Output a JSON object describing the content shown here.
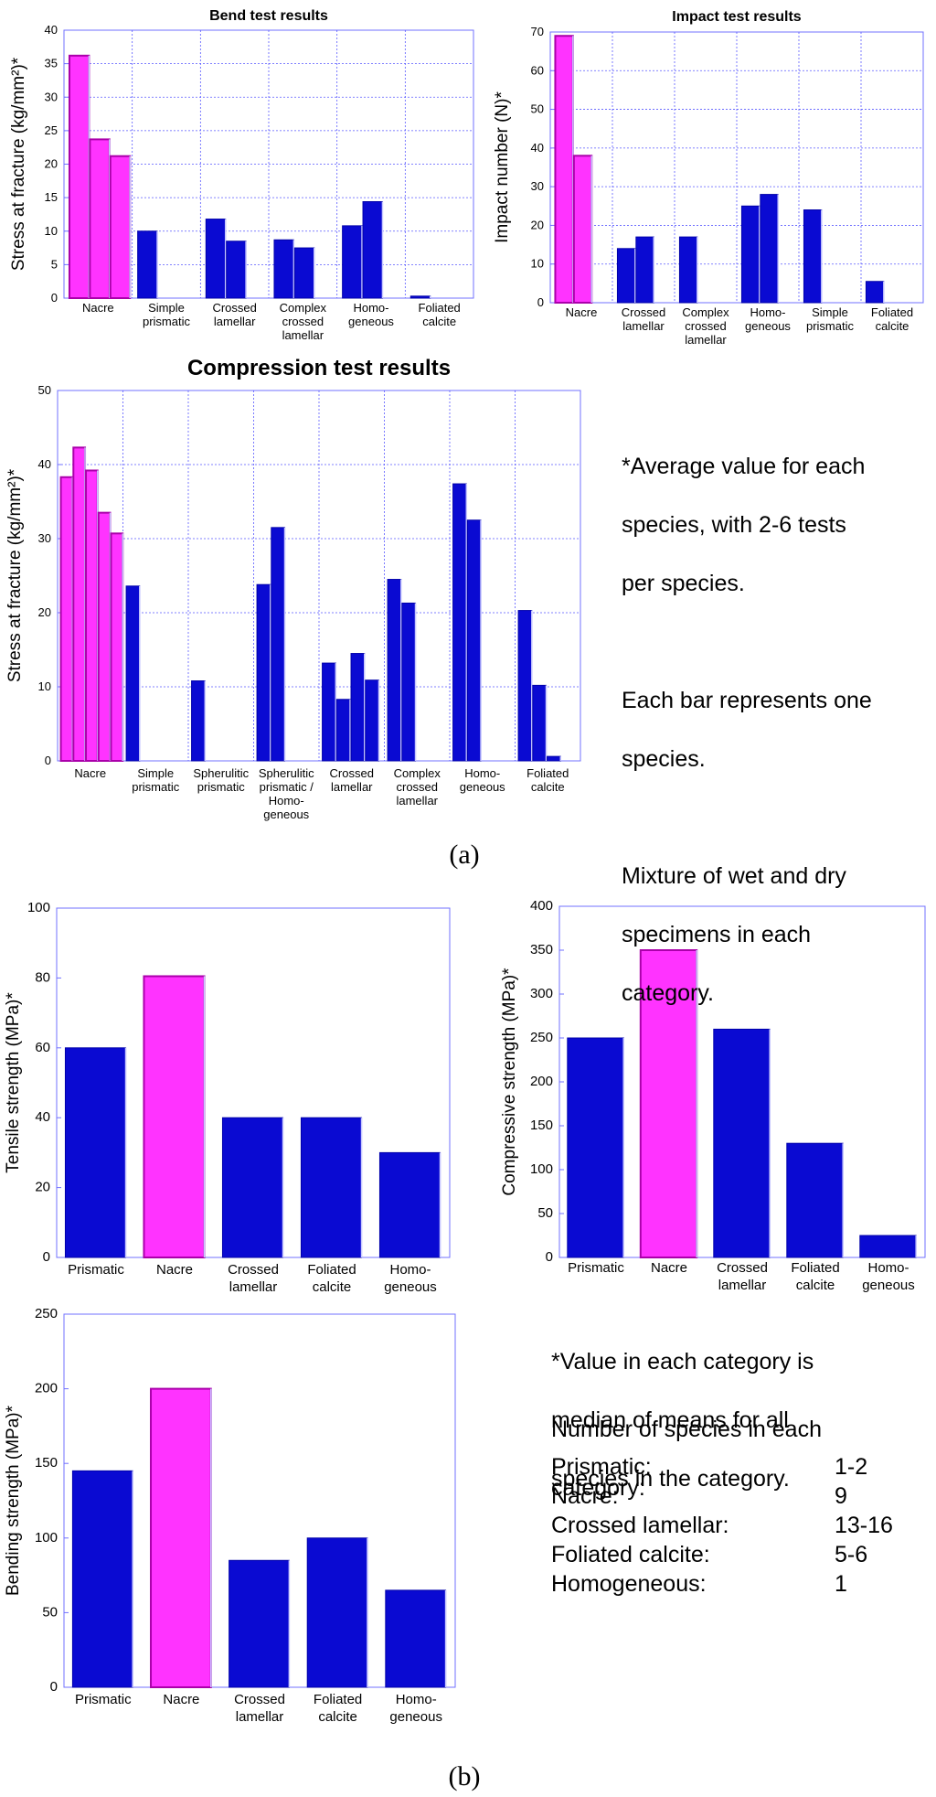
{
  "panel_labels": {
    "a": "(a)",
    "b": "(b)"
  },
  "notes": {
    "a": [
      "*Average value for each",
      "species, with 2-6 tests",
      "per species.",
      "",
      "Each bar represents one",
      "species.",
      "",
      "Mixture of wet and dry",
      "specimens in each",
      "category."
    ],
    "b": [
      "*Value in each category is",
      "median of means for all",
      "species in the category."
    ],
    "species_heading": [
      "Number of species in each",
      "category:"
    ],
    "species_counts": [
      {
        "category": "Prismatic:",
        "count": "1-2"
      },
      {
        "category": "Nacre:",
        "count": "9"
      },
      {
        "category": "Crossed lamellar:",
        "count": "13-16"
      },
      {
        "category": "Foliated calcite:",
        "count": "5-6"
      },
      {
        "category": "Homogeneous:",
        "count": "1"
      }
    ]
  },
  "colors": {
    "nacre_fill": "#ff33ff",
    "nacre_stroke": "#aa00aa",
    "other_fill": "#0a0ad2",
    "other_stroke": "#0000aa",
    "grid": "#5a5aff",
    "frame": "#7070ff"
  },
  "chart_data": [
    {
      "id": "bend",
      "type": "bar",
      "title": "Bend test results",
      "ylabel": "Stress at fracture (kg/mm²)*",
      "ylim": [
        0,
        40
      ],
      "yticks": [
        0,
        5,
        10,
        15,
        20,
        25,
        30,
        35,
        40
      ],
      "grid": true,
      "groups": [
        {
          "label": [
            "Nacre"
          ],
          "nacre": true,
          "values": [
            36.2,
            23.7,
            21.2
          ]
        },
        {
          "label": [
            "Simple",
            "prismatic"
          ],
          "values": [
            10
          ]
        },
        {
          "label": [
            "Crossed",
            "lamellar"
          ],
          "values": [
            11.8,
            8.5
          ]
        },
        {
          "label": [
            "Complex",
            "crossed",
            "lamellar"
          ],
          "values": [
            8.7,
            7.5
          ]
        },
        {
          "label": [
            "Homo-",
            "geneous"
          ],
          "values": [
            10.8,
            14.4
          ]
        },
        {
          "label": [
            "Foliated",
            "calcite"
          ],
          "values": [
            0.3
          ]
        }
      ]
    },
    {
      "id": "impact",
      "type": "bar",
      "title": "Impact test results",
      "ylabel": "Impact number (N)*",
      "ylim": [
        0,
        70
      ],
      "yticks": [
        0,
        10,
        20,
        30,
        40,
        50,
        60,
        70
      ],
      "grid": true,
      "groups": [
        {
          "label": [
            "Nacre"
          ],
          "nacre": true,
          "values": [
            69,
            38
          ]
        },
        {
          "label": [
            "Crossed",
            "lamellar"
          ],
          "values": [
            14,
            17
          ]
        },
        {
          "label": [
            "Complex",
            "crossed",
            "lamellar"
          ],
          "values": [
            17
          ]
        },
        {
          "label": [
            "Homo-",
            "geneous"
          ],
          "values": [
            25,
            28
          ]
        },
        {
          "label": [
            "Simple",
            "prismatic"
          ],
          "values": [
            24
          ]
        },
        {
          "label": [
            "Foliated",
            "calcite"
          ],
          "values": [
            5.5
          ]
        }
      ]
    },
    {
      "id": "compression",
      "type": "bar",
      "title": "Compression test results",
      "ylabel": "Stress at fracture (kg/mm²)*",
      "ylim": [
        0,
        50
      ],
      "yticks": [
        0,
        10,
        20,
        30,
        40,
        50
      ],
      "grid": true,
      "groups": [
        {
          "label": [
            "Nacre"
          ],
          "nacre": true,
          "values": [
            38.3,
            42.3,
            39.2,
            33.5,
            30.7
          ]
        },
        {
          "label": [
            "Simple",
            "prismatic"
          ],
          "values": [
            23.6
          ]
        },
        {
          "label": [
            "Spherulitic",
            "prismatic"
          ],
          "values": [
            10.8
          ]
        },
        {
          "label": [
            "Spherulitic",
            "prismatic /",
            "Homo-",
            "geneous"
          ],
          "values": [
            23.8,
            31.5
          ]
        },
        {
          "label": [
            "Crossed",
            "lamellar"
          ],
          "values": [
            13.2,
            8.3,
            14.5,
            10.9
          ]
        },
        {
          "label": [
            "Complex",
            "crossed",
            "lamellar"
          ],
          "values": [
            24.5,
            21.3
          ]
        },
        {
          "label": [
            "Homo-",
            "geneous"
          ],
          "values": [
            37.4,
            32.5
          ]
        },
        {
          "label": [
            "Foliated",
            "calcite"
          ],
          "values": [
            20.3,
            10.2,
            0.6
          ]
        }
      ]
    },
    {
      "id": "tensile",
      "type": "bar",
      "title": "",
      "ylabel": "Tensile strength (MPa)*",
      "ylim": [
        0,
        100
      ],
      "yticks": [
        0,
        20,
        40,
        60,
        80,
        100
      ],
      "grid": false,
      "groups": [
        {
          "label": [
            "Prismatic"
          ],
          "values": [
            60
          ]
        },
        {
          "label": [
            "Nacre"
          ],
          "nacre": true,
          "values": [
            80.5
          ]
        },
        {
          "label": [
            "Crossed",
            "lamellar"
          ],
          "values": [
            40
          ]
        },
        {
          "label": [
            "Foliated",
            "calcite"
          ],
          "values": [
            40
          ]
        },
        {
          "label": [
            "Homo-",
            "geneous"
          ],
          "values": [
            30
          ]
        }
      ]
    },
    {
      "id": "compressive",
      "type": "bar",
      "title": "",
      "ylabel": "Compressive strength (MPa)*",
      "ylim": [
        0,
        400
      ],
      "yticks": [
        0,
        50,
        100,
        150,
        200,
        250,
        300,
        350,
        400
      ],
      "grid": false,
      "groups": [
        {
          "label": [
            "Prismatic"
          ],
          "values": [
            250
          ]
        },
        {
          "label": [
            "Nacre"
          ],
          "nacre": true,
          "values": [
            350
          ]
        },
        {
          "label": [
            "Crossed",
            "lamellar"
          ],
          "values": [
            260
          ]
        },
        {
          "label": [
            "Foliated",
            "calcite"
          ],
          "values": [
            130
          ]
        },
        {
          "label": [
            "Homo-",
            "geneous"
          ],
          "values": [
            25
          ]
        }
      ]
    },
    {
      "id": "bending",
      "type": "bar",
      "title": "",
      "ylabel": "Bending strength (MPa)*",
      "ylim": [
        0,
        250
      ],
      "yticks": [
        0,
        50,
        100,
        150,
        200,
        250
      ],
      "grid": false,
      "groups": [
        {
          "label": [
            "Prismatic"
          ],
          "values": [
            145
          ]
        },
        {
          "label": [
            "Nacre"
          ],
          "nacre": true,
          "values": [
            200
          ]
        },
        {
          "label": [
            "Crossed",
            "lamellar"
          ],
          "values": [
            85
          ]
        },
        {
          "label": [
            "Foliated",
            "calcite"
          ],
          "values": [
            100
          ]
        },
        {
          "label": [
            "Homo-",
            "geneous"
          ],
          "values": [
            65
          ]
        }
      ]
    }
  ]
}
